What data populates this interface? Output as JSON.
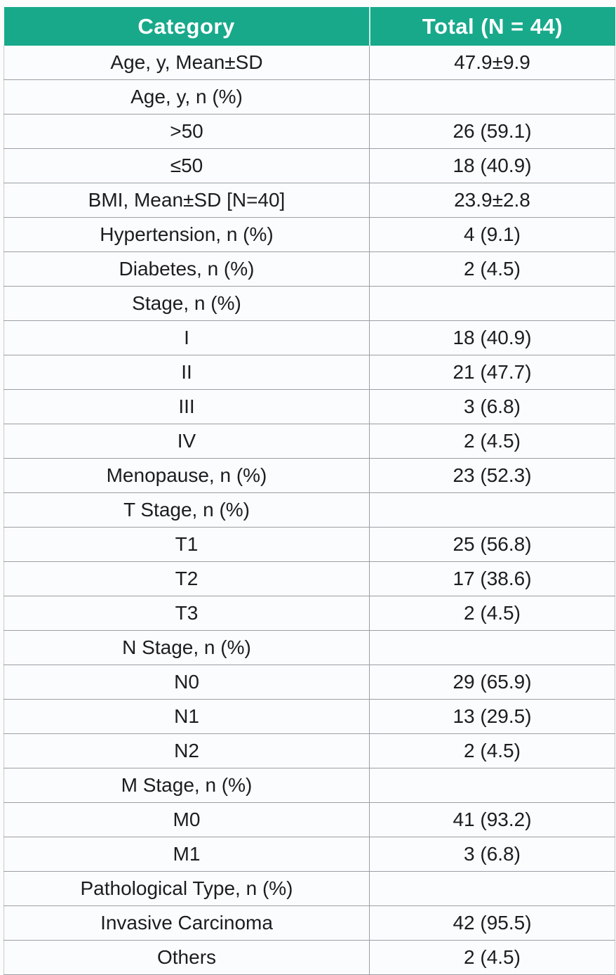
{
  "chart_data": {
    "type": "table",
    "title": "",
    "columns": [
      "Category",
      "Total (N = 44)"
    ],
    "rows": [
      [
        "Age, y, Mean±SD",
        "47.9±9.9"
      ],
      [
        "Age, y, n (%)",
        ""
      ],
      [
        ">50",
        "26 (59.1)"
      ],
      [
        "≤50",
        "18 (40.9)"
      ],
      [
        "BMI, Mean±SD [N=40]",
        "23.9±2.8"
      ],
      [
        "Hypertension, n (%)",
        "4 (9.1)"
      ],
      [
        "Diabetes, n (%)",
        "2 (4.5)"
      ],
      [
        "Stage, n (%)",
        ""
      ],
      [
        "I",
        "18 (40.9)"
      ],
      [
        "II",
        "21 (47.7)"
      ],
      [
        "III",
        "3 (6.8)"
      ],
      [
        "IV",
        "2 (4.5)"
      ],
      [
        "Menopause, n (%)",
        "23 (52.3)"
      ],
      [
        "T Stage, n (%)",
        ""
      ],
      [
        "T1",
        "25 (56.8)"
      ],
      [
        "T2",
        "17 (38.6)"
      ],
      [
        "T3",
        "2 (4.5)"
      ],
      [
        "N Stage, n (%)",
        ""
      ],
      [
        "N0",
        "29 (65.9)"
      ],
      [
        "N1",
        "13 (29.5)"
      ],
      [
        "N2",
        "2 (4.5)"
      ],
      [
        "M Stage, n (%)",
        ""
      ],
      [
        "M0",
        "41 (93.2)"
      ],
      [
        "M1",
        "3 (6.8)"
      ],
      [
        "Pathological Type, n (%)",
        ""
      ],
      [
        "Invasive Carcinoma",
        "42 (95.5)"
      ],
      [
        "Others",
        "2 (4.5)"
      ]
    ],
    "layout": {
      "column_align": [
        "center",
        "center"
      ],
      "grid": true,
      "header_position": "top"
    },
    "colors": {
      "header_bg": "#18A98B",
      "header_text": "#FFFFFF",
      "row_bg": "#FBFCFD",
      "border": "#9AA0A5"
    }
  }
}
